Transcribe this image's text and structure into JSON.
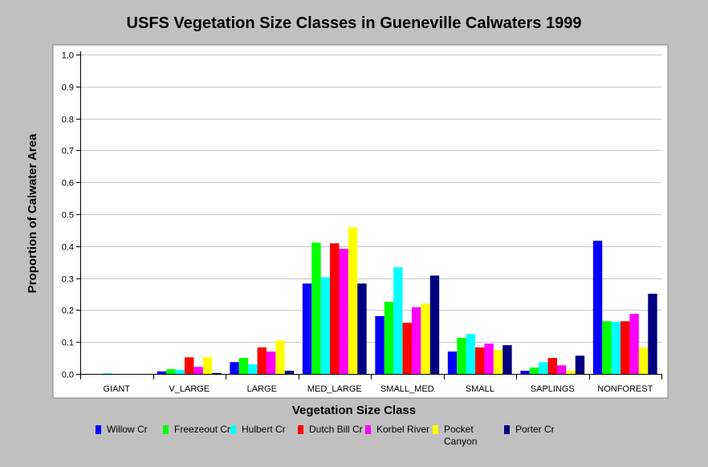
{
  "chart_data": {
    "type": "bar",
    "title": "USFS Vegetation Size Classes in Gueneville Calwaters 1999",
    "xlabel": "Vegetation Size Class",
    "ylabel": "Proportion of Calwater Area",
    "ylim": [
      0,
      1.0
    ],
    "yticks": [
      "0.0",
      "0.1",
      "0.2",
      "0.3",
      "0.4",
      "0.5",
      "0.6",
      "0.7",
      "0.8",
      "0.9",
      "1.0"
    ],
    "grid": true,
    "legend_position": "bottom",
    "categories": [
      "GIANT",
      "V_LARGE",
      "LARGE",
      "MED_LARGE",
      "SMALL_MED",
      "SMALL",
      "SAPLINGS",
      "NONFOREST"
    ],
    "series": [
      {
        "name": "Willow Cr",
        "color": "#0000ff",
        "values": [
          0.0,
          0.008,
          0.037,
          0.283,
          0.181,
          0.07,
          0.01,
          0.417
        ]
      },
      {
        "name": "Freezeout Cr",
        "color": "#00ff00",
        "values": [
          0.0,
          0.015,
          0.05,
          0.411,
          0.226,
          0.113,
          0.02,
          0.165
        ]
      },
      {
        "name": "Hulbert Cr",
        "color": "#00ffff",
        "values": [
          0.002,
          0.013,
          0.03,
          0.303,
          0.334,
          0.125,
          0.037,
          0.163
        ]
      },
      {
        "name": "Dutch Bill Cr",
        "color": "#ff0000",
        "values": [
          0.0,
          0.052,
          0.083,
          0.409,
          0.16,
          0.083,
          0.05,
          0.165
        ]
      },
      {
        "name": "Korbel River",
        "color": "#ff00ff",
        "values": [
          0.0,
          0.022,
          0.07,
          0.392,
          0.209,
          0.095,
          0.027,
          0.188
        ]
      },
      {
        "name": "Pocket Canyon",
        "color": "#ffff00",
        "values": [
          0.0,
          0.053,
          0.105,
          0.459,
          0.22,
          0.075,
          0.01,
          0.083
        ]
      },
      {
        "name": "Porter Cr",
        "color": "#000080",
        "values": [
          0.0,
          0.003,
          0.01,
          0.283,
          0.308,
          0.09,
          0.057,
          0.251
        ]
      }
    ]
  }
}
